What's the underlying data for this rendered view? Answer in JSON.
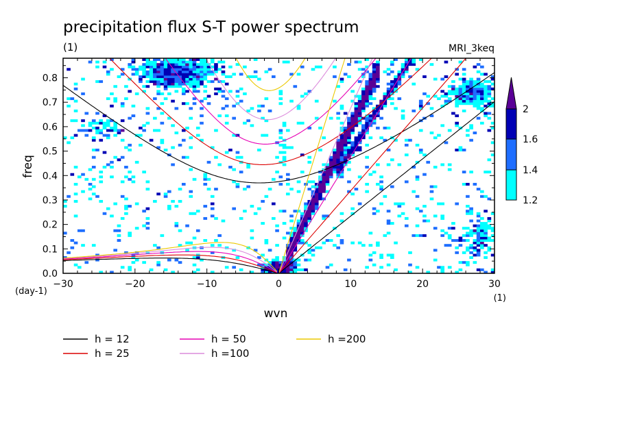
{
  "chart_data": {
    "type": "heatmap",
    "title": "precipitation flux S-T power spectrum",
    "units_label": "(1)",
    "model_label": "MRI_3keq",
    "xlabel": "wvn",
    "ylabel": "freq",
    "x_unit": "(1)",
    "y_unit": "(day-1)",
    "xlim": [
      -30,
      30
    ],
    "ylim": [
      0,
      0.88
    ],
    "x_ticks": [
      -30,
      -20,
      -10,
      0,
      10,
      20,
      30
    ],
    "y_ticks": [
      0.0,
      0.1,
      0.2,
      0.3,
      0.4,
      0.5,
      0.6,
      0.7,
      0.8
    ],
    "colorbar": {
      "ticks": [
        "1.2",
        "1.4",
        "1.6",
        "2"
      ],
      "levels": [
        1.2,
        1.4,
        1.6,
        2.0
      ],
      "colors": [
        "#00ffff",
        "#1e6eff",
        "#0000b4",
        "#5a0096"
      ]
    },
    "series": [
      {
        "name": "h = 12",
        "h": 12,
        "color": "#000000"
      },
      {
        "name": "h = 25",
        "h": 25,
        "color": "#dc0000"
      },
      {
        "name": "h = 50",
        "h": 50,
        "color": "#e600b4"
      },
      {
        "name": "h =100",
        "h": 100,
        "color": "#dc8cdc"
      },
      {
        "name": "h =200",
        "h": 200,
        "color": "#ebc800"
      }
    ]
  }
}
